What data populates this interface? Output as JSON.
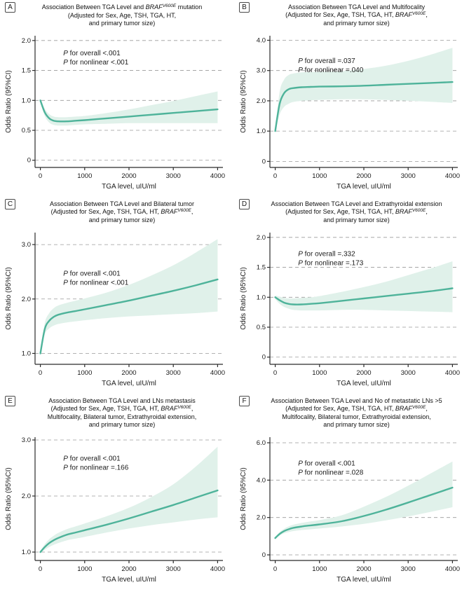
{
  "colors": {
    "line": "#4eb39a",
    "band": "#e0f1ea",
    "grid": "#9a9a9a",
    "axis": "#2b2b2b",
    "text": "#1a1a1a"
  },
  "x_common": [
    0,
    100,
    200,
    300,
    400,
    600,
    800,
    1000,
    1500,
    2000,
    2500,
    3000,
    3500,
    4000
  ],
  "chart_data": [
    {
      "type": "line",
      "panel": "A",
      "title_lines": [
        [
          {
            "t": "Association Between TGA Level and "
          },
          {
            "t": "BRAF",
            "s": "i"
          },
          {
            "t": "V600E",
            "s": "is"
          },
          {
            "t": " mutation"
          }
        ],
        [
          {
            "t": "(Adjusted for Sex, Age, TSH, TGA, HT,"
          }
        ],
        [
          {
            "t": "and primary tumor size)"
          }
        ]
      ],
      "p_lines": [
        "P for overall <.001",
        "P for nonlinear <.001"
      ],
      "xlabel": "TGA level, uIU/ml",
      "ylabel": "Odds Ratio (95%CI)",
      "xticks": [
        0,
        1000,
        2000,
        3000,
        4000
      ],
      "xtick_labels": [
        "0",
        "1000",
        "2000",
        "3000",
        "4000"
      ],
      "ylim": [
        -0.12,
        2.08
      ],
      "yticks": [
        0,
        0.5,
        1.0,
        1.5,
        2.0
      ],
      "ytick_labels": [
        "0",
        "0.5",
        "1.0",
        "1.5",
        "2.0"
      ],
      "series": [
        {
          "name": "odds_ratio",
          "values": [
            1.0,
            0.8,
            0.7,
            0.66,
            0.65,
            0.65,
            0.66,
            0.67,
            0.7,
            0.73,
            0.76,
            0.79,
            0.82,
            0.85
          ]
        },
        {
          "name": "ci_lower",
          "values": [
            0.97,
            0.74,
            0.63,
            0.59,
            0.58,
            0.58,
            0.59,
            0.6,
            0.61,
            0.62,
            0.62,
            0.62,
            0.62,
            0.62
          ]
        },
        {
          "name": "ci_upper",
          "values": [
            1.03,
            0.86,
            0.77,
            0.73,
            0.72,
            0.72,
            0.73,
            0.74,
            0.79,
            0.85,
            0.92,
            0.99,
            1.07,
            1.15
          ]
        }
      ]
    },
    {
      "type": "line",
      "panel": "B",
      "title_lines": [
        [
          {
            "t": "Association Between TGA Level and Multifocality"
          }
        ],
        [
          {
            "t": "(Adjusted for Sex, Age, TSH, TGA, HT, "
          },
          {
            "t": "BRAF",
            "s": "i"
          },
          {
            "t": "V600E",
            "s": "is"
          },
          {
            "t": ","
          }
        ],
        [
          {
            "t": "and primary tumor size)"
          }
        ]
      ],
      "p_lines": [
        "P for overall =.037",
        "P for nonlinear =.040"
      ],
      "xlabel": "TGA level, uIU/ml",
      "ylabel": "Odds Ratio (95%CI)",
      "xticks": [
        0,
        1000,
        2000,
        3000,
        4000
      ],
      "xtick_labels": [
        "0",
        "1000",
        "2000",
        "3000",
        "4000"
      ],
      "ylim": [
        -0.2,
        4.15
      ],
      "yticks": [
        0,
        1.0,
        2.0,
        3.0,
        4.0
      ],
      "ytick_labels": [
        "0",
        "1.0",
        "2.0",
        "3.0",
        "4.0"
      ],
      "series": [
        {
          "name": "odds_ratio",
          "values": [
            1.0,
            1.9,
            2.25,
            2.38,
            2.42,
            2.45,
            2.46,
            2.47,
            2.48,
            2.5,
            2.53,
            2.56,
            2.59,
            2.62
          ]
        },
        {
          "name": "ci_lower",
          "values": [
            0.97,
            1.55,
            1.8,
            1.9,
            1.96,
            2.0,
            2.02,
            2.03,
            2.05,
            2.05,
            2.03,
            2.0,
            1.97,
            1.93
          ]
        },
        {
          "name": "ci_upper",
          "values": [
            1.03,
            2.3,
            2.7,
            2.85,
            2.9,
            2.94,
            2.95,
            2.96,
            2.98,
            3.05,
            3.16,
            3.32,
            3.52,
            3.75
          ]
        }
      ]
    },
    {
      "type": "line",
      "panel": "C",
      "title_lines": [
        [
          {
            "t": "Association Between TGA Level and Bilateral tumor"
          }
        ],
        [
          {
            "t": "(Adjusted for Sex, Age, TSH, TGA, HT, "
          },
          {
            "t": "BRAF",
            "s": "i"
          },
          {
            "t": "V600E",
            "s": "is"
          },
          {
            "t": ","
          }
        ],
        [
          {
            "t": "and primary tumor size)"
          }
        ]
      ],
      "p_lines": [
        "P for overall <.001",
        "P for nonlinear <.001"
      ],
      "xlabel": "TGA level, uIU/ml",
      "ylabel": "Odds Ratio (95%CI)",
      "xticks": [
        0,
        1000,
        2000,
        3000,
        4000
      ],
      "xtick_labels": [
        "0",
        "1000",
        "2000",
        "3000",
        "4000"
      ],
      "ylim": [
        0.8,
        3.22
      ],
      "yticks": [
        1.0,
        2.0,
        3.0
      ],
      "ytick_labels": [
        "1.0",
        "2.0",
        "3.0"
      ],
      "series": [
        {
          "name": "odds_ratio",
          "values": [
            1.0,
            1.45,
            1.6,
            1.67,
            1.71,
            1.75,
            1.78,
            1.81,
            1.89,
            1.97,
            2.06,
            2.15,
            2.25,
            2.36
          ]
        },
        {
          "name": "ci_lower",
          "values": [
            0.97,
            1.35,
            1.46,
            1.51,
            1.54,
            1.57,
            1.59,
            1.61,
            1.65,
            1.68,
            1.7,
            1.72,
            1.74,
            1.77
          ]
        },
        {
          "name": "ci_upper",
          "values": [
            1.03,
            1.56,
            1.74,
            1.83,
            1.88,
            1.93,
            1.97,
            2.01,
            2.12,
            2.26,
            2.43,
            2.62,
            2.85,
            3.1
          ]
        }
      ]
    },
    {
      "type": "line",
      "panel": "D",
      "title_lines": [
        [
          {
            "t": "Association Between TGA Level and Extrathyroidal extension"
          }
        ],
        [
          {
            "t": "(Adjusted for Sex, Age, TSH, TGA, HT, "
          },
          {
            "t": "BRAF",
            "s": "i"
          },
          {
            "t": "V600E",
            "s": "is"
          },
          {
            "t": ","
          }
        ],
        [
          {
            "t": "and primary tumor size)"
          }
        ]
      ],
      "p_lines": [
        "P for overall =.332",
        "P for nonlinear =.173"
      ],
      "xlabel": "TGA level, uIU/ml",
      "ylabel": "Odds Ratio (95%CI)",
      "xticks": [
        0,
        1000,
        2000,
        3000,
        4000
      ],
      "xtick_labels": [
        "0",
        "1000",
        "2000",
        "3000",
        "4000"
      ],
      "ylim": [
        -0.12,
        2.08
      ],
      "yticks": [
        0,
        0.5,
        1.0,
        1.5,
        2.0
      ],
      "ytick_labels": [
        "0",
        "0.5",
        "1.0",
        "1.5",
        "2.0"
      ],
      "series": [
        {
          "name": "odds_ratio",
          "values": [
            1.0,
            0.95,
            0.91,
            0.89,
            0.88,
            0.88,
            0.89,
            0.9,
            0.94,
            0.98,
            1.02,
            1.06,
            1.1,
            1.15
          ]
        },
        {
          "name": "ci_lower",
          "values": [
            0.97,
            0.89,
            0.84,
            0.81,
            0.79,
            0.78,
            0.78,
            0.78,
            0.79,
            0.79,
            0.78,
            0.77,
            0.76,
            0.75
          ]
        },
        {
          "name": "ci_upper",
          "values": [
            1.03,
            1.01,
            0.99,
            0.98,
            0.98,
            0.99,
            1.0,
            1.02,
            1.09,
            1.17,
            1.26,
            1.37,
            1.48,
            1.6
          ]
        }
      ]
    },
    {
      "type": "line",
      "panel": "E",
      "title_lines": [
        [
          {
            "t": "Association Between TGA Level and LNs metastasis"
          }
        ],
        [
          {
            "t": "(Adjusted for Sex, Age, TSH, TGA, HT, "
          },
          {
            "t": "BRAF",
            "s": "i"
          },
          {
            "t": "V600E",
            "s": "is"
          },
          {
            "t": ","
          }
        ],
        [
          {
            "t": "Multifocality, Bilateral tumor, Extrathyroidal extension,"
          }
        ],
        [
          {
            "t": "and primary tumor size)"
          }
        ]
      ],
      "p_lines": [
        "P for overall <.001",
        "P for nonlinear =.166"
      ],
      "xlabel": "TGA level, uIU/ml",
      "ylabel": "Odds Ratio (95%CI)",
      "xticks": [
        0,
        1000,
        2000,
        3000,
        4000
      ],
      "xtick_labels": [
        "0",
        "1000",
        "2000",
        "3000",
        "4000"
      ],
      "ylim": [
        0.85,
        3.05
      ],
      "yticks": [
        1.0,
        2.0,
        3.0
      ],
      "ytick_labels": [
        "1.0",
        "2.0",
        "3.0"
      ],
      "series": [
        {
          "name": "odds_ratio",
          "values": [
            1.0,
            1.09,
            1.16,
            1.21,
            1.25,
            1.31,
            1.35,
            1.39,
            1.49,
            1.6,
            1.72,
            1.84,
            1.97,
            2.1
          ]
        },
        {
          "name": "ci_lower",
          "values": [
            0.98,
            1.04,
            1.09,
            1.13,
            1.16,
            1.21,
            1.24,
            1.27,
            1.35,
            1.42,
            1.48,
            1.53,
            1.58,
            1.62
          ]
        },
        {
          "name": "ci_upper",
          "values": [
            1.02,
            1.14,
            1.23,
            1.29,
            1.34,
            1.41,
            1.46,
            1.51,
            1.64,
            1.79,
            1.98,
            2.21,
            2.52,
            2.88
          ]
        }
      ]
    },
    {
      "type": "line",
      "panel": "F",
      "title_lines": [
        [
          {
            "t": "Association Between TGA Level and No of metastatic LNs >5"
          }
        ],
        [
          {
            "t": "(Adjusted for Sex, Age, TSH, TGA, HT, "
          },
          {
            "t": "BRAF",
            "s": "i"
          },
          {
            "t": "V600E",
            "s": "is"
          },
          {
            "t": ","
          }
        ],
        [
          {
            "t": "Multifocality, Bilateral tumor, Extrathyroidal extension,"
          }
        ],
        [
          {
            "t": "and primary tumor size)"
          }
        ]
      ],
      "p_lines": [
        "P for overall <.001",
        "P for nonlinear =.028"
      ],
      "xlabel": "TGA level, uIU/ml",
      "ylabel": "Odds Ratio (95%CI)",
      "xticks": [
        0,
        1000,
        2000,
        3000,
        4000
      ],
      "xtick_labels": [
        "0",
        "1000",
        "2000",
        "3000",
        "4000"
      ],
      "ylim": [
        -0.3,
        6.3
      ],
      "yticks": [
        0,
        2.0,
        4.0,
        6.0
      ],
      "ytick_labels": [
        "0",
        "2.0",
        "4.0",
        "6.0"
      ],
      "series": [
        {
          "name": "odds_ratio",
          "values": [
            0.9,
            1.12,
            1.27,
            1.37,
            1.44,
            1.52,
            1.58,
            1.63,
            1.8,
            2.08,
            2.42,
            2.8,
            3.2,
            3.6
          ]
        },
        {
          "name": "ci_lower",
          "values": [
            0.85,
            1.03,
            1.15,
            1.22,
            1.27,
            1.33,
            1.37,
            1.41,
            1.52,
            1.66,
            1.85,
            2.06,
            2.3,
            2.55
          ]
        },
        {
          "name": "ci_upper",
          "values": [
            0.95,
            1.22,
            1.4,
            1.52,
            1.61,
            1.71,
            1.79,
            1.86,
            2.12,
            2.58,
            3.1,
            3.7,
            4.35,
            5.0
          ]
        }
      ]
    }
  ]
}
